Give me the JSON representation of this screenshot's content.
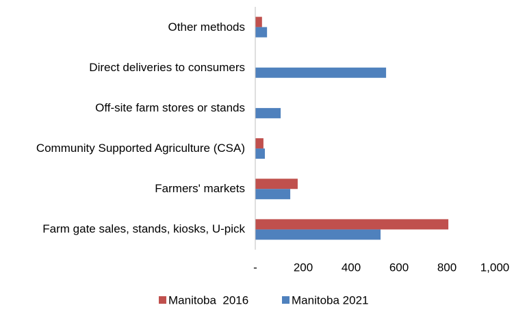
{
  "chart_data": {
    "type": "hbar",
    "categories": [
      "Other methods",
      "Direct deliveries to consumers",
      "Off-site farm stores or stands",
      "Community Supported Agriculture (CSA)",
      "Farmers' markets",
      "Farm gate sales, stands, kiosks, U-pick"
    ],
    "series": [
      {
        "name": "Manitoba  2016",
        "color": "#c0504d",
        "values": [
          28,
          null,
          null,
          34,
          177,
          806
        ]
      },
      {
        "name": "Manitoba 2021",
        "color": "#4f81bd",
        "values": [
          49,
          546,
          106,
          40,
          146,
          523
        ]
      }
    ],
    "xlim": [
      0,
      1000
    ],
    "xticks": [
      {
        "value": 0,
        "label": "-"
      },
      200,
      400,
      600,
      800,
      {
        "value": 1000,
        "label": "1,000"
      }
    ],
    "legend": "bottom"
  }
}
